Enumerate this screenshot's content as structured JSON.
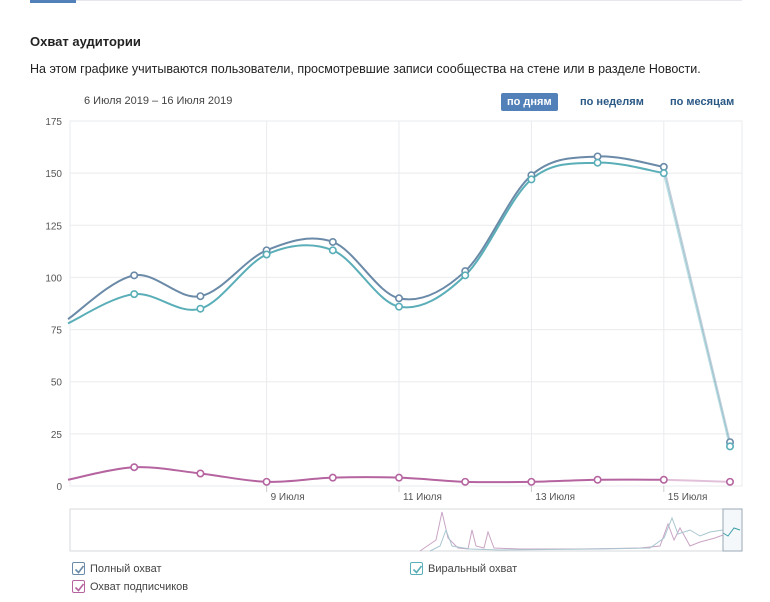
{
  "header": {
    "title": "Охват аудитории",
    "description": "На этом графике учитываются пользователи, просмотревшие записи сообщества на стене или в разделе Новости."
  },
  "controls": {
    "date_range": "6 Июля 2019 – 16 Июля 2019",
    "periods": [
      "по дням",
      "по неделям",
      "по месяцам"
    ],
    "active_period": "по дням"
  },
  "colors": {
    "full": "#6a8aa8",
    "viral": "#5aaeb8",
    "subscribers": "#b564a0",
    "active_button": "#5181b8",
    "grid": "#e9ebee"
  },
  "chart_data": {
    "type": "line",
    "title": "",
    "xlabel": "",
    "ylabel": "",
    "ylim": [
      0,
      175
    ],
    "yticks": [
      0,
      25,
      50,
      75,
      100,
      125,
      150,
      175
    ],
    "x": [
      6,
      7,
      8,
      9,
      10,
      11,
      12,
      13,
      14,
      15,
      16
    ],
    "x_tick_labels": [
      {
        "x": 9,
        "label": "9 Июля"
      },
      {
        "x": 11,
        "label": "11 Июля"
      },
      {
        "x": 13,
        "label": "13 Июля"
      },
      {
        "x": 15,
        "label": "15 Июля"
      }
    ],
    "grid": true,
    "legend_position": "bottom-left",
    "series": [
      {
        "name": "Полный охват",
        "color": "#6a8aa8",
        "values": [
          80,
          101,
          91,
          113,
          117,
          90,
          103,
          149,
          158,
          153,
          21
        ],
        "checked": true
      },
      {
        "name": "Виральный охват",
        "color": "#5aaeb8",
        "values": [
          78,
          92,
          85,
          111,
          113,
          86,
          101,
          147,
          155,
          150,
          19
        ],
        "checked": true
      },
      {
        "name": "Охват подписчиков",
        "color": "#b564a0",
        "values": [
          3,
          9,
          6,
          2,
          4,
          4,
          2,
          2,
          3,
          3,
          2
        ],
        "checked": true
      }
    ]
  },
  "legend": {
    "full": "Полный охват",
    "viral": "Виральный охват",
    "subscribers": "Охват подписчиков"
  }
}
